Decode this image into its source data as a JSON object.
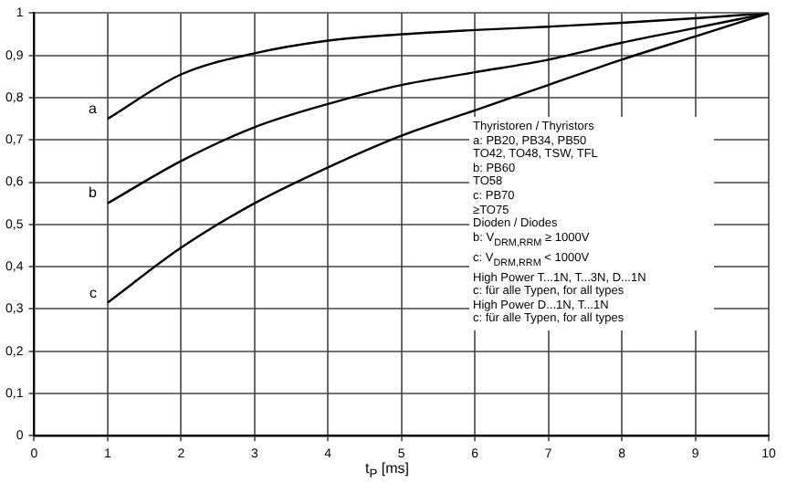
{
  "chart_data": {
    "type": "line",
    "xlabel": "t$_{P}$ [ms]",
    "x": [
      1,
      2,
      3,
      4,
      5,
      6,
      7,
      8,
      9,
      10
    ],
    "series": [
      {
        "name": "a",
        "color": "#000000",
        "values": [
          0.75,
          0.855,
          0.905,
          0.935,
          0.95,
          0.96,
          0.968,
          0.977,
          0.988,
          1
        ]
      },
      {
        "name": "b",
        "color": "#000000",
        "values": [
          0.55,
          0.65,
          0.73,
          0.785,
          0.83,
          0.86,
          0.89,
          0.93,
          0.965,
          1
        ]
      },
      {
        "name": "c",
        "color": "#000000",
        "values": [
          0.315,
          0.445,
          0.55,
          0.635,
          0.71,
          0.77,
          0.83,
          0.89,
          0.945,
          1
        ]
      }
    ],
    "xlim": [
      0,
      10
    ],
    "xticks": [
      0,
      1,
      2,
      3,
      4,
      5,
      6,
      7,
      8,
      9,
      10
    ],
    "ylim": [
      0,
      1
    ],
    "yticks": [
      {
        "value": 0,
        "label": "0"
      },
      {
        "value": 0.1,
        "label": "0,1"
      },
      {
        "value": 0.2,
        "label": "0,2"
      },
      {
        "value": 0.3,
        "label": "0,3"
      },
      {
        "value": 0.4,
        "label": "0,4"
      },
      {
        "value": 0.5,
        "label": "0,5"
      },
      {
        "value": 0.6,
        "label": "0,6"
      },
      {
        "value": 0.7,
        "label": "0,7"
      },
      {
        "value": 0.8,
        "label": "0,8"
      },
      {
        "value": 0.9,
        "label": "0,9"
      },
      {
        "value": 1,
        "label": "1"
      }
    ],
    "grid": true,
    "legend": false,
    "marker": "none",
    "line_style": "solid",
    "annotations": [
      "Thyristoren / Thyristors",
      "a: PB20, PB34, PB50",
      "TO42, TO48, TSW, TFL",
      "b: PB60",
      "TO58",
      "c: PB70",
      "≥TO75",
      "Dioden / Diodes",
      "b: V$_{DRM,RRM}$ ≥ 1000V",
      "c: V$_{DRM,RRM}$ < 1000V",
      "High Power T...1N, T...3N, D...1N",
      "c: für alle Typen, for all types",
      "High Power D...1N, T...1N",
      "c: für alle Typen, for all types"
    ]
  }
}
